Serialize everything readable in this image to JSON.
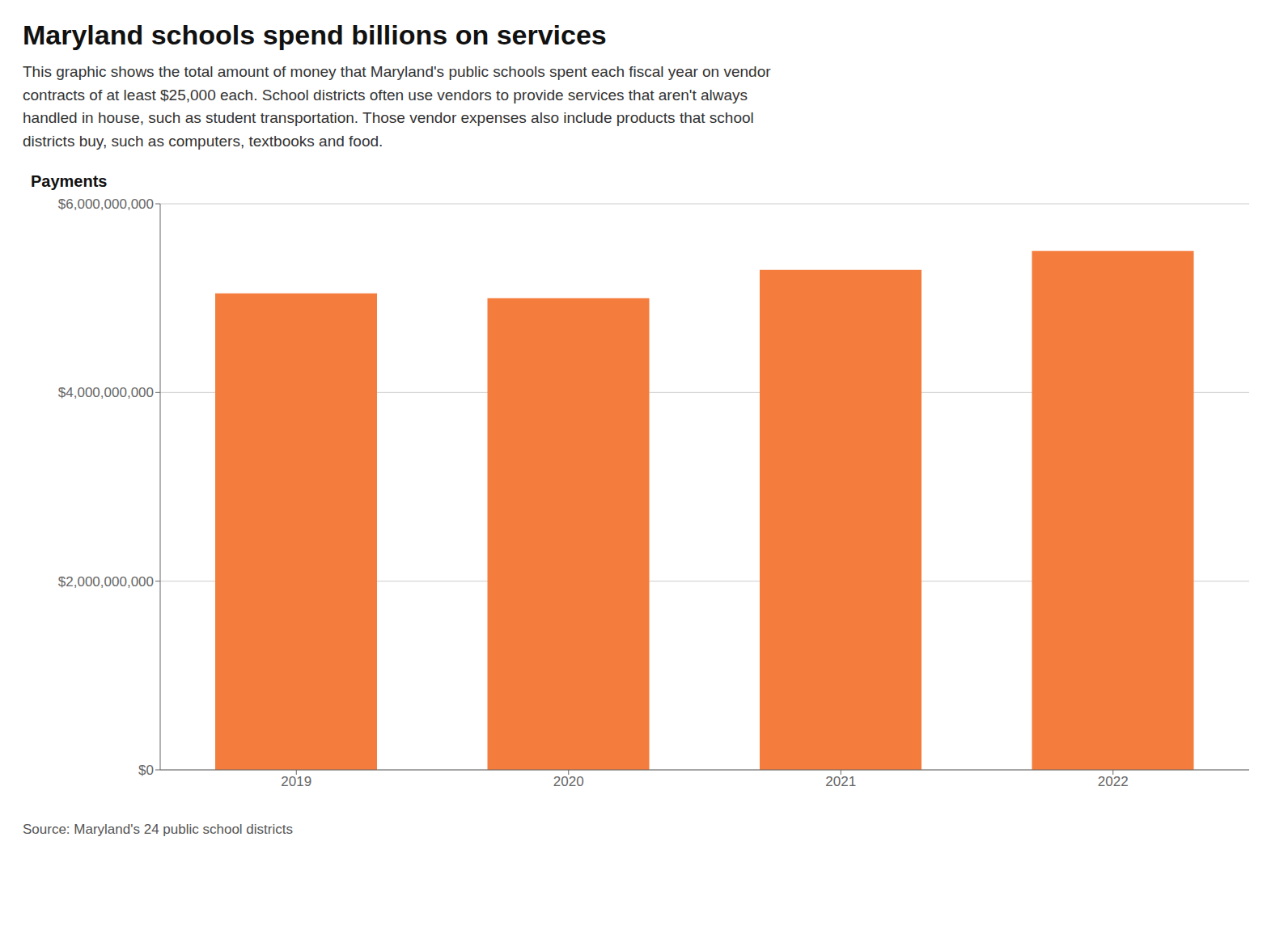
{
  "chart_data": {
    "type": "bar",
    "title": "Maryland schools spend billions on services",
    "subtitle": [
      "This graphic shows the total amount of money that Maryland's public schools spent each fiscal year on vendor",
      "contracts of at least $25,000 each. School districts often use vendors to provide services that aren't always",
      "handled in house, such as student transportation. Those vendor expenses also include products that school",
      "districts buy, such as computers, textbooks and food."
    ],
    "ylabel": "Payments",
    "source": "Source: Maryland's 24 public school districts",
    "categories": [
      "2019",
      "2020",
      "2021",
      "2022"
    ],
    "values": [
      5050000000,
      5000000000,
      5300000000,
      5500000000
    ],
    "color": "#F47C3C",
    "ylim": [
      0,
      6000000000
    ],
    "yticks": [
      {
        "value": 0,
        "label": "$0"
      },
      {
        "value": 2000000000,
        "label": "$2,000,000,000"
      },
      {
        "value": 4000000000,
        "label": "$4,000,000,000"
      },
      {
        "value": 6000000000,
        "label": "$6,000,000,000"
      }
    ],
    "grid": true
  }
}
